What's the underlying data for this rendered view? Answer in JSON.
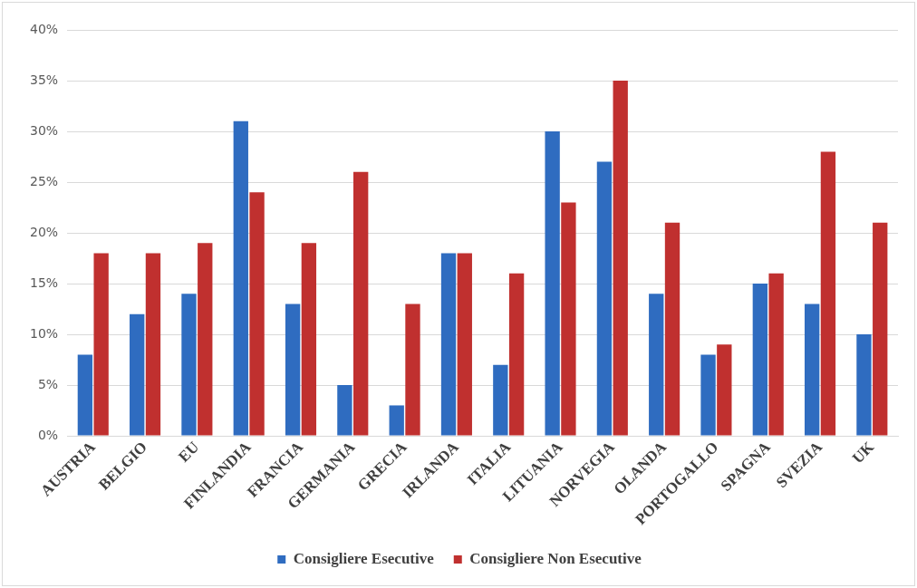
{
  "chart_data": {
    "type": "bar",
    "categories": [
      "AUSTRIA",
      "BELGIO",
      "EU",
      "FINLANDIA",
      "FRANCIA",
      "GERMANIA",
      "GRECIA",
      "IRLANDA",
      "ITALIA",
      "LITUANIA",
      "NORVEGIA",
      "OLANDA",
      "PORTOGALLO",
      "SPAGNA",
      "SVEZIA",
      "UK"
    ],
    "series": [
      {
        "name": "Consigliere Esecutive",
        "color": "#2f6cc0",
        "values": [
          8,
          12,
          14,
          31,
          13,
          5,
          3,
          18,
          7,
          30,
          27,
          14,
          8,
          15,
          13,
          10
        ]
      },
      {
        "name": "Consigliere Non Esecutive",
        "color": "#c0302f",
        "values": [
          18,
          18,
          19,
          24,
          19,
          26,
          13,
          18,
          16,
          23,
          35,
          21,
          9,
          16,
          28,
          21
        ]
      }
    ],
    "ylim": [
      0,
      40
    ],
    "yticks": [
      {
        "value": 0,
        "label": "0%"
      },
      {
        "value": 5,
        "label": "5%"
      },
      {
        "value": 10,
        "label": "10%"
      },
      {
        "value": 15,
        "label": "15%"
      },
      {
        "value": 20,
        "label": "20%"
      },
      {
        "value": 25,
        "label": "25%"
      },
      {
        "value": 30,
        "label": "30%"
      },
      {
        "value": 35,
        "label": "35%"
      },
      {
        "value": 40,
        "label": "40%"
      }
    ],
    "grid": "y",
    "legend": "bottom"
  }
}
